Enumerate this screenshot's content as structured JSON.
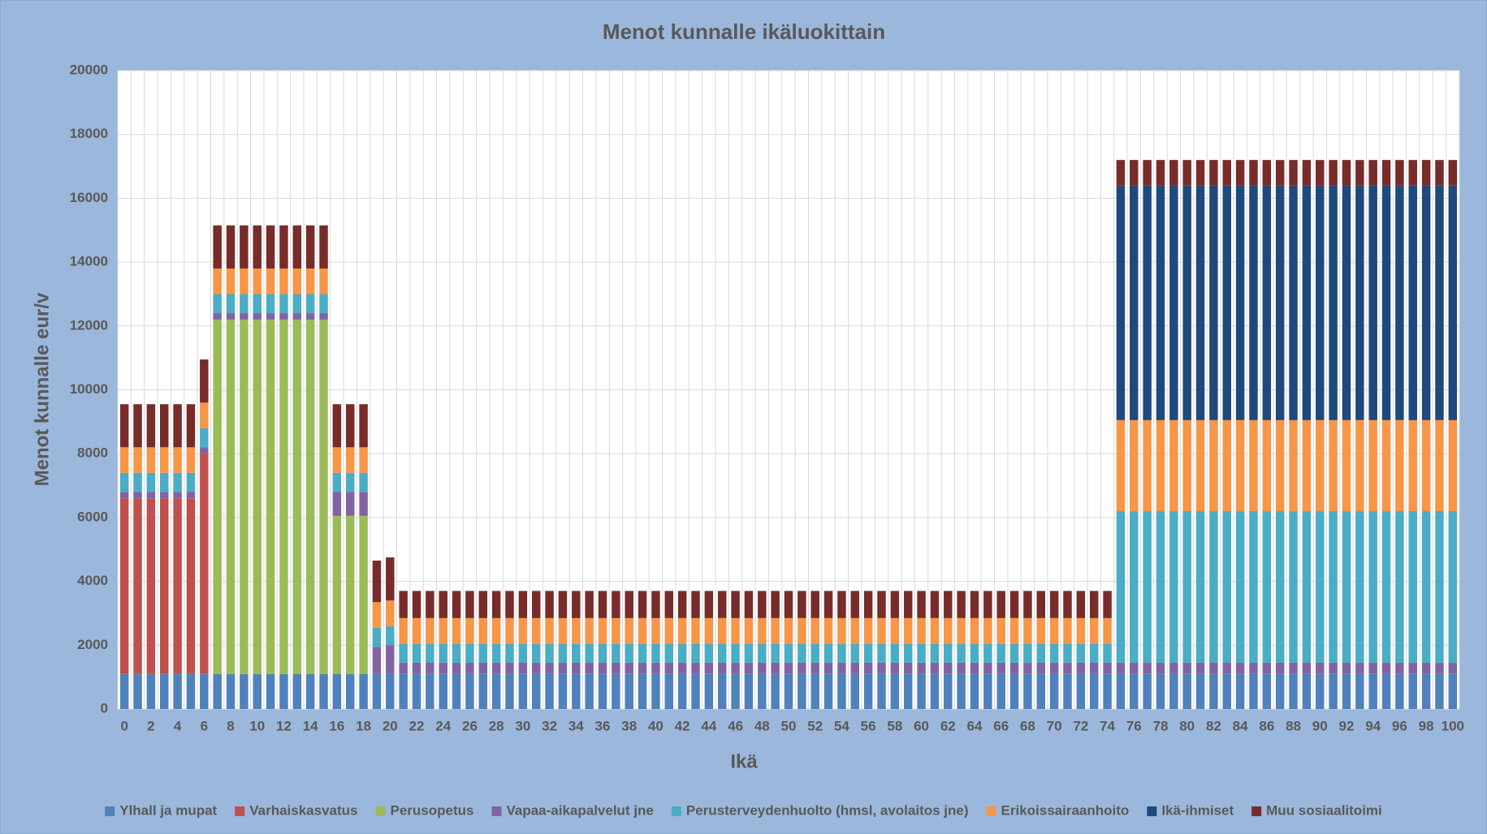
{
  "chart_data": {
    "type": "stacked_bar",
    "title": "Menot kunnalle ikäluokittain",
    "xlabel": "Ikä",
    "ylabel": "Menot kunnalle eur/v",
    "categories": [
      0,
      null,
      2,
      null,
      4,
      null,
      6,
      null,
      8,
      null,
      10,
      null,
      12,
      null,
      14,
      null,
      16,
      null,
      18,
      null,
      20,
      null,
      22,
      null,
      24,
      null,
      26,
      null,
      28,
      null,
      30,
      null,
      32,
      null,
      34,
      null,
      36,
      null,
      38,
      null,
      40,
      null,
      42,
      null,
      44,
      null,
      46,
      null,
      48,
      null,
      50,
      null,
      52,
      null,
      54,
      null,
      56,
      null,
      58,
      null,
      60,
      null,
      62,
      null,
      64,
      null,
      66,
      null,
      68,
      null,
      70,
      null,
      72,
      null,
      74,
      null,
      76,
      null,
      78,
      null,
      80,
      null,
      82,
      null,
      84,
      null,
      86,
      null,
      88,
      null,
      90,
      null,
      92,
      null,
      94,
      null,
      96,
      null,
      98,
      null,
      100
    ],
    "ylim": [
      0,
      20000
    ],
    "yticks": [
      0,
      2000,
      4000,
      6000,
      8000,
      10000,
      12000,
      14000,
      16000,
      18000,
      20000
    ],
    "grid": true,
    "legend": "bottom",
    "series": [
      {
        "name": "Ylhall ja mupat",
        "color": "#4f81bd",
        "values": [
          1100,
          1100,
          1100,
          1100,
          1100,
          1100,
          1100,
          1100,
          1100,
          1100,
          1100,
          1100,
          1100,
          1100,
          1100,
          1100,
          1100,
          1100,
          1100,
          1100,
          1100,
          1100,
          1100,
          1100,
          1100,
          1100,
          1100,
          1100,
          1100,
          1100,
          1100,
          1100,
          1100,
          1100,
          1100,
          1100,
          1100,
          1100,
          1100,
          1100,
          1100,
          1100,
          1100,
          1100,
          1100,
          1100,
          1100,
          1100,
          1100,
          1100,
          1100,
          1100,
          1100,
          1100,
          1100,
          1100,
          1100,
          1100,
          1100,
          1100,
          1100,
          1100,
          1100,
          1100,
          1100,
          1100,
          1100,
          1100,
          1100,
          1100,
          1100,
          1100,
          1100,
          1100,
          1100,
          1100,
          1100,
          1100,
          1100,
          1100,
          1100,
          1100,
          1100,
          1100,
          1100,
          1100,
          1100,
          1100,
          1100,
          1100,
          1100,
          1100,
          1100,
          1100,
          1100,
          1100,
          1100,
          1100,
          1100,
          1100,
          1100
        ]
      },
      {
        "name": "Varhaiskasvatus",
        "color": "#c0504d",
        "values": [
          5500,
          5500,
          5500,
          5500,
          5500,
          5500,
          6900,
          0,
          0,
          0,
          0,
          0,
          0,
          0,
          0,
          0,
          0,
          0,
          0,
          0,
          0,
          0,
          0,
          0,
          0,
          0,
          0,
          0,
          0,
          0,
          0,
          0,
          0,
          0,
          0,
          0,
          0,
          0,
          0,
          0,
          0,
          0,
          0,
          0,
          0,
          0,
          0,
          0,
          0,
          0,
          0,
          0,
          0,
          0,
          0,
          0,
          0,
          0,
          0,
          0,
          0,
          0,
          0,
          0,
          0,
          0,
          0,
          0,
          0,
          0,
          0,
          0,
          0,
          0,
          0,
          0,
          0,
          0,
          0,
          0,
          0,
          0,
          0,
          0,
          0,
          0,
          0,
          0,
          0,
          0,
          0,
          0,
          0,
          0,
          0,
          0,
          0,
          0,
          0,
          0,
          0
        ]
      },
      {
        "name": "Perusopetus",
        "color": "#9bbb59",
        "values": [
          0,
          0,
          0,
          0,
          0,
          0,
          0,
          11100,
          11100,
          11100,
          11100,
          11100,
          11100,
          11100,
          11100,
          11100,
          4950,
          4950,
          4950,
          0,
          0,
          0,
          0,
          0,
          0,
          0,
          0,
          0,
          0,
          0,
          0,
          0,
          0,
          0,
          0,
          0,
          0,
          0,
          0,
          0,
          0,
          0,
          0,
          0,
          0,
          0,
          0,
          0,
          0,
          0,
          0,
          0,
          0,
          0,
          0,
          0,
          0,
          0,
          0,
          0,
          0,
          0,
          0,
          0,
          0,
          0,
          0,
          0,
          0,
          0,
          0,
          0,
          0,
          0,
          0,
          0,
          0,
          0,
          0,
          0,
          0,
          0,
          0,
          0,
          0,
          0,
          0,
          0,
          0,
          0,
          0,
          0,
          0,
          0,
          0,
          0,
          0,
          0,
          0,
          0,
          0
        ]
      },
      {
        "name": "Vapaa-aikapalvelut jne",
        "color": "#8064a2",
        "values": [
          200,
          200,
          200,
          200,
          200,
          200,
          200,
          200,
          200,
          200,
          200,
          200,
          200,
          200,
          200,
          200,
          750,
          750,
          750,
          850,
          900,
          350,
          350,
          350,
          350,
          350,
          350,
          350,
          350,
          350,
          350,
          350,
          350,
          350,
          350,
          350,
          350,
          350,
          350,
          350,
          350,
          350,
          350,
          350,
          350,
          350,
          350,
          350,
          350,
          350,
          350,
          350,
          350,
          350,
          350,
          350,
          350,
          350,
          350,
          350,
          350,
          350,
          350,
          350,
          350,
          350,
          350,
          350,
          350,
          350,
          350,
          350,
          350,
          350,
          350,
          350,
          350,
          350,
          350,
          350,
          350,
          350,
          350,
          350,
          350,
          350,
          350,
          350,
          350,
          350,
          350,
          350,
          350,
          350,
          350,
          350,
          350,
          350,
          350,
          350,
          350
        ]
      },
      {
        "name": "Perusterveydenhuolto (hmsl, avolaitos jne)",
        "color": "#4bacc6",
        "values": [
          600,
          600,
          600,
          600,
          600,
          600,
          600,
          600,
          600,
          600,
          600,
          600,
          600,
          600,
          600,
          600,
          600,
          600,
          600,
          600,
          600,
          600,
          600,
          600,
          600,
          600,
          600,
          600,
          600,
          600,
          600,
          600,
          600,
          600,
          600,
          600,
          600,
          600,
          600,
          600,
          600,
          600,
          600,
          600,
          600,
          600,
          600,
          600,
          600,
          600,
          600,
          600,
          600,
          600,
          600,
          600,
          600,
          600,
          600,
          600,
          600,
          600,
          600,
          600,
          600,
          600,
          600,
          600,
          600,
          600,
          600,
          600,
          600,
          600,
          600,
          4750,
          4750,
          4750,
          4750,
          4750,
          4750,
          4750,
          4750,
          4750,
          4750,
          4750,
          4750,
          4750,
          4750,
          4750,
          4750,
          4750,
          4750,
          4750,
          4750,
          4750,
          4750,
          4750,
          4750,
          4750,
          4750
        ]
      },
      {
        "name": "Erikoissairaanhoito",
        "color": "#f79646",
        "values": [
          800,
          800,
          800,
          800,
          800,
          800,
          800,
          800,
          800,
          800,
          800,
          800,
          800,
          800,
          800,
          800,
          800,
          800,
          800,
          800,
          800,
          800,
          800,
          800,
          800,
          800,
          800,
          800,
          800,
          800,
          800,
          800,
          800,
          800,
          800,
          800,
          800,
          800,
          800,
          800,
          800,
          800,
          800,
          800,
          800,
          800,
          800,
          800,
          800,
          800,
          800,
          800,
          800,
          800,
          800,
          800,
          800,
          800,
          800,
          800,
          800,
          800,
          800,
          800,
          800,
          800,
          800,
          800,
          800,
          800,
          800,
          800,
          800,
          800,
          800,
          2850,
          2850,
          2850,
          2850,
          2850,
          2850,
          2850,
          2850,
          2850,
          2850,
          2850,
          2850,
          2850,
          2850,
          2850,
          2850,
          2850,
          2850,
          2850,
          2850,
          2850,
          2850,
          2850,
          2850,
          2850,
          2850
        ]
      },
      {
        "name": "Ikä-ihmiset",
        "color": "#1f497d",
        "values": [
          0,
          0,
          0,
          0,
          0,
          0,
          0,
          0,
          0,
          0,
          0,
          0,
          0,
          0,
          0,
          0,
          0,
          0,
          0,
          0,
          0,
          0,
          0,
          0,
          0,
          0,
          0,
          0,
          0,
          0,
          0,
          0,
          0,
          0,
          0,
          0,
          0,
          0,
          0,
          0,
          0,
          0,
          0,
          0,
          0,
          0,
          0,
          0,
          0,
          0,
          0,
          0,
          0,
          0,
          0,
          0,
          0,
          0,
          0,
          0,
          0,
          0,
          0,
          0,
          0,
          0,
          0,
          0,
          0,
          0,
          0,
          0,
          0,
          0,
          0,
          7350,
          7350,
          7350,
          7350,
          7350,
          7350,
          7350,
          7350,
          7350,
          7350,
          7350,
          7350,
          7350,
          7350,
          7350,
          7350,
          7350,
          7350,
          7350,
          7350,
          7350,
          7350,
          7350,
          7350,
          7350,
          7350
        ]
      },
      {
        "name": "Muu sosiaalitoimi",
        "color": "#772c2a",
        "values": [
          1350,
          1350,
          1350,
          1350,
          1350,
          1350,
          1350,
          1350,
          1350,
          1350,
          1350,
          1350,
          1350,
          1350,
          1350,
          1350,
          1350,
          1350,
          1350,
          1300,
          1350,
          850,
          850,
          850,
          850,
          850,
          850,
          850,
          850,
          850,
          850,
          850,
          850,
          850,
          850,
          850,
          850,
          850,
          850,
          850,
          850,
          850,
          850,
          850,
          850,
          850,
          850,
          850,
          850,
          850,
          850,
          850,
          850,
          850,
          850,
          850,
          850,
          850,
          850,
          850,
          850,
          850,
          850,
          850,
          850,
          850,
          850,
          850,
          850,
          850,
          850,
          850,
          850,
          850,
          850,
          800,
          800,
          800,
          800,
          800,
          800,
          800,
          800,
          800,
          800,
          800,
          800,
          800,
          800,
          800,
          800,
          800,
          800,
          800,
          800,
          800,
          800,
          800,
          800,
          800,
          800
        ]
      }
    ]
  }
}
